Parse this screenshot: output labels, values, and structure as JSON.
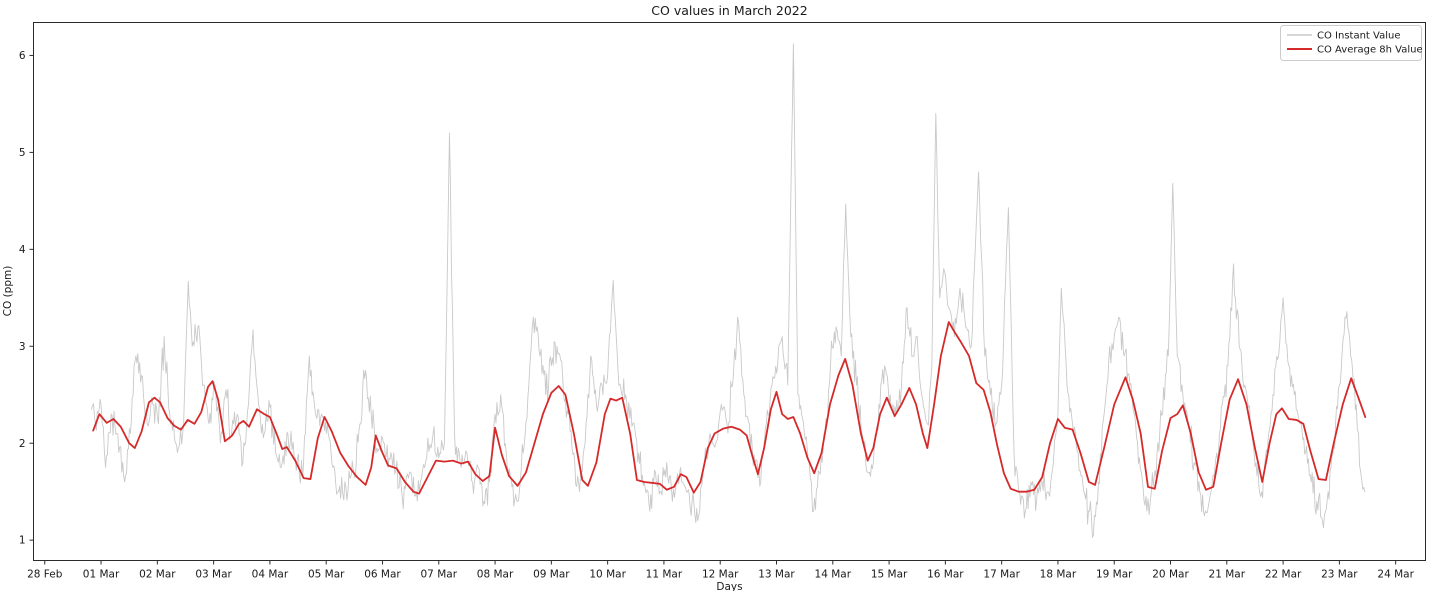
{
  "chart_data": {
    "type": "line",
    "title": "CO values in March 2022",
    "xlabel": "Days",
    "ylabel": "CO (ppm)",
    "x_unit": "days since 28 Feb 2022",
    "grid": false,
    "legend_position": "upper right",
    "xlim": [
      -0.2,
      24.53
    ],
    "ylim": [
      0.79,
      6.34
    ],
    "y_ticks": [
      1,
      2,
      3,
      4,
      5,
      6
    ],
    "x_tick_positions": [
      0,
      1,
      2,
      3,
      4,
      5,
      6,
      7,
      8,
      9,
      10,
      11,
      12,
      13,
      14,
      15,
      16,
      17,
      18,
      19,
      20,
      21,
      22,
      23,
      24
    ],
    "x_tick_labels": [
      "28 Feb",
      "01 Mar",
      "02 Mar",
      "03 Mar",
      "04 Mar",
      "05 Mar",
      "06 Mar",
      "07 Mar",
      "08 Mar",
      "09 Mar",
      "10 Mar",
      "11 Mar",
      "12 Mar",
      "13 Mar",
      "14 Mar",
      "15 Mar",
      "16 Mar",
      "17 Mar",
      "18 Mar",
      "19 Mar",
      "20 Mar",
      "21 Mar",
      "22 Mar",
      "23 Mar",
      "24 Mar"
    ],
    "series": [
      {
        "name": "CO Instant Value",
        "color": "#c9c9c9",
        "line_width": 0.9,
        "style": {
          "noise_step_days": 0.018,
          "noise_amp": [
            0.05,
            0.22
          ],
          "clamp": [
            1.03,
            6.12
          ],
          "seed": 7
        },
        "x": [
          0.83,
          0.9,
          1.0,
          1.08,
          1.18,
          1.28,
          1.42,
          1.52,
          1.62,
          1.72,
          1.82,
          1.92,
          2.02,
          2.12,
          2.22,
          2.32,
          2.45,
          2.55,
          2.62,
          2.72,
          2.82,
          2.92,
          3.02,
          3.12,
          3.22,
          3.32,
          3.42,
          3.52,
          3.62,
          3.7,
          3.8,
          3.9,
          4.0,
          4.1,
          4.2,
          4.32,
          4.45,
          4.58,
          4.7,
          4.8,
          4.92,
          5.02,
          5.12,
          5.22,
          5.35,
          5.5,
          5.6,
          5.7,
          5.8,
          5.9,
          6.0,
          6.1,
          6.2,
          6.35,
          6.5,
          6.6,
          6.75,
          6.9,
          7.0,
          7.1,
          7.19,
          7.28,
          7.38,
          7.5,
          7.6,
          7.7,
          7.8,
          7.9,
          8.0,
          8.1,
          8.2,
          8.3,
          8.4,
          8.5,
          8.6,
          8.68,
          8.8,
          8.9,
          9.0,
          9.1,
          9.2,
          9.3,
          9.4,
          9.5,
          9.6,
          9.7,
          9.8,
          9.9,
          10.0,
          10.1,
          10.2,
          10.32,
          10.45,
          10.55,
          10.65,
          10.75,
          10.85,
          10.95,
          11.05,
          11.15,
          11.28,
          11.4,
          11.5,
          11.6,
          11.72,
          11.82,
          11.92,
          12.02,
          12.12,
          12.22,
          12.31,
          12.42,
          12.52,
          12.62,
          12.72,
          12.82,
          12.92,
          13.02,
          13.1,
          13.2,
          13.3,
          13.38,
          13.48,
          13.58,
          13.66,
          13.76,
          13.86,
          13.96,
          14.06,
          14.15,
          14.23,
          14.32,
          14.42,
          14.52,
          14.62,
          14.72,
          14.82,
          14.92,
          15.02,
          15.12,
          15.22,
          15.32,
          15.42,
          15.5,
          15.58,
          15.68,
          15.76,
          15.83,
          15.9,
          15.97,
          16.06,
          16.16,
          16.26,
          16.36,
          16.46,
          16.59,
          16.7,
          16.8,
          16.9,
          17.0,
          17.12,
          17.22,
          17.32,
          17.42,
          17.52,
          17.62,
          17.72,
          17.82,
          17.92,
          18.0,
          18.06,
          18.16,
          18.26,
          18.36,
          18.46,
          18.56,
          18.63,
          18.72,
          18.82,
          18.92,
          19.0,
          19.08,
          19.18,
          19.28,
          19.38,
          19.48,
          19.58,
          19.66,
          19.76,
          19.86,
          19.96,
          20.04,
          20.12,
          20.22,
          20.32,
          20.42,
          20.52,
          20.62,
          20.72,
          20.82,
          20.92,
          21.02,
          21.12,
          21.22,
          21.32,
          21.42,
          21.52,
          21.62,
          21.72,
          21.82,
          21.92,
          22.0,
          22.1,
          22.2,
          22.3,
          22.4,
          22.5,
          22.6,
          22.7,
          22.8,
          22.9,
          23.0,
          23.1,
          23.2,
          23.3,
          23.38,
          23.45
        ],
        "y": [
          2.35,
          2.2,
          2.4,
          1.75,
          2.3,
          2.1,
          1.6,
          2.1,
          2.9,
          2.7,
          2.2,
          2.4,
          2.2,
          3.1,
          2.3,
          2.0,
          2.1,
          3.67,
          3.0,
          3.2,
          2.6,
          2.2,
          2.6,
          2.0,
          2.55,
          2.1,
          2.3,
          1.8,
          2.4,
          3.17,
          2.4,
          2.1,
          2.37,
          1.9,
          1.75,
          2.1,
          1.85,
          1.65,
          2.9,
          2.35,
          2.3,
          2.2,
          1.75,
          1.5,
          1.55,
          1.65,
          2.2,
          2.75,
          2.3,
          1.95,
          2.05,
          1.75,
          1.9,
          1.45,
          1.7,
          1.5,
          1.75,
          2.1,
          1.85,
          2.0,
          5.2,
          2.1,
          1.8,
          1.9,
          1.6,
          1.75,
          1.4,
          1.6,
          2.3,
          2.5,
          1.9,
          1.55,
          1.4,
          1.9,
          2.6,
          3.3,
          2.9,
          2.5,
          2.8,
          3.0,
          2.7,
          2.3,
          1.9,
          1.5,
          2.0,
          2.9,
          2.4,
          2.6,
          2.7,
          3.68,
          2.6,
          2.5,
          2.2,
          1.9,
          1.6,
          1.3,
          1.7,
          1.5,
          1.8,
          1.4,
          1.7,
          1.5,
          1.4,
          1.2,
          1.8,
          2.1,
          2.0,
          2.4,
          2.2,
          2.6,
          3.3,
          2.5,
          2.2,
          1.8,
          1.6,
          2.2,
          2.6,
          2.8,
          3.1,
          2.6,
          6.12,
          2.5,
          2.2,
          1.8,
          1.3,
          1.7,
          2.1,
          2.8,
          3.2,
          2.9,
          4.47,
          3.1,
          2.6,
          2.1,
          1.7,
          1.8,
          2.4,
          2.8,
          2.5,
          2.3,
          2.6,
          3.4,
          2.9,
          3.1,
          2.5,
          2.2,
          2.8,
          5.4,
          3.5,
          3.8,
          3.4,
          3.1,
          3.6,
          3.2,
          3.0,
          4.8,
          2.9,
          2.5,
          2.2,
          2.6,
          4.43,
          1.9,
          1.5,
          1.3,
          1.6,
          1.4,
          1.6,
          1.5,
          1.8,
          2.3,
          3.6,
          2.6,
          2.2,
          1.9,
          1.5,
          1.3,
          1.05,
          1.6,
          2.3,
          3.0,
          3.1,
          3.3,
          2.9,
          2.6,
          2.2,
          1.7,
          1.3,
          1.5,
          1.9,
          2.3,
          2.9,
          4.68,
          2.9,
          2.5,
          2.2,
          1.8,
          1.5,
          1.3,
          1.5,
          1.9,
          2.4,
          2.8,
          3.85,
          3.0,
          2.6,
          2.2,
          1.8,
          1.5,
          1.9,
          2.5,
          2.9,
          3.5,
          2.8,
          2.5,
          2.2,
          1.9,
          1.6,
          1.4,
          1.2,
          1.5,
          2.0,
          2.6,
          3.3,
          2.9,
          2.4,
          1.7,
          1.5
        ]
      },
      {
        "name": "CO Average 8h Value",
        "color": "#d62a2a",
        "line_width": 1.8,
        "x": [
          0.86,
          0.97,
          1.1,
          1.22,
          1.35,
          1.5,
          1.6,
          1.72,
          1.85,
          1.95,
          2.05,
          2.18,
          2.3,
          2.42,
          2.54,
          2.66,
          2.78,
          2.9,
          2.98,
          3.08,
          3.2,
          3.33,
          3.45,
          3.53,
          3.63,
          3.77,
          3.9,
          4.0,
          4.13,
          4.22,
          4.3,
          4.45,
          4.6,
          4.72,
          4.85,
          4.97,
          5.1,
          5.25,
          5.4,
          5.55,
          5.7,
          5.8,
          5.88,
          6.0,
          6.1,
          6.25,
          6.4,
          6.55,
          6.65,
          6.8,
          6.95,
          7.1,
          7.25,
          7.4,
          7.52,
          7.65,
          7.78,
          7.9,
          8.0,
          8.12,
          8.25,
          8.4,
          8.55,
          8.7,
          8.85,
          9.0,
          9.13,
          9.25,
          9.4,
          9.55,
          9.65,
          9.8,
          9.95,
          10.05,
          10.15,
          10.26,
          10.4,
          10.52,
          10.65,
          10.8,
          10.93,
          11.05,
          11.18,
          11.3,
          11.4,
          11.53,
          11.65,
          11.78,
          11.9,
          12.05,
          12.2,
          12.35,
          12.47,
          12.58,
          12.67,
          12.78,
          12.9,
          13.0,
          13.1,
          13.2,
          13.3,
          13.42,
          13.55,
          13.67,
          13.8,
          13.95,
          14.1,
          14.22,
          14.35,
          14.5,
          14.62,
          14.72,
          14.84,
          14.96,
          15.1,
          15.22,
          15.36,
          15.48,
          15.6,
          15.68,
          15.8,
          15.92,
          16.06,
          16.16,
          16.28,
          16.42,
          16.55,
          16.68,
          16.8,
          16.92,
          17.04,
          17.16,
          17.3,
          17.45,
          17.58,
          17.72,
          17.86,
          18.0,
          18.12,
          18.26,
          18.4,
          18.55,
          18.66,
          18.82,
          19.0,
          19.2,
          19.33,
          19.47,
          19.6,
          19.72,
          19.85,
          20.0,
          20.12,
          20.22,
          20.36,
          20.5,
          20.63,
          20.76,
          20.9,
          21.05,
          21.2,
          21.35,
          21.5,
          21.63,
          21.76,
          21.88,
          21.98,
          22.1,
          22.24,
          22.36,
          22.48,
          22.63,
          22.76,
          22.9,
          23.06,
          23.21,
          23.35,
          23.46
        ],
        "y": [
          2.13,
          2.3,
          2.21,
          2.25,
          2.17,
          2.0,
          1.95,
          2.12,
          2.42,
          2.47,
          2.42,
          2.26,
          2.18,
          2.14,
          2.24,
          2.2,
          2.32,
          2.58,
          2.64,
          2.45,
          2.02,
          2.08,
          2.2,
          2.23,
          2.17,
          2.35,
          2.3,
          2.27,
          2.08,
          1.94,
          1.96,
          1.82,
          1.64,
          1.63,
          2.05,
          2.27,
          2.12,
          1.9,
          1.76,
          1.65,
          1.57,
          1.75,
          2.08,
          1.9,
          1.77,
          1.74,
          1.6,
          1.5,
          1.48,
          1.65,
          1.82,
          1.81,
          1.82,
          1.79,
          1.81,
          1.68,
          1.61,
          1.66,
          2.16,
          1.88,
          1.66,
          1.56,
          1.7,
          2.0,
          2.3,
          2.52,
          2.59,
          2.5,
          2.1,
          1.62,
          1.56,
          1.8,
          2.3,
          2.46,
          2.44,
          2.47,
          2.1,
          1.62,
          1.6,
          1.59,
          1.58,
          1.52,
          1.55,
          1.68,
          1.65,
          1.49,
          1.6,
          1.95,
          2.1,
          2.15,
          2.17,
          2.14,
          2.08,
          1.85,
          1.68,
          1.95,
          2.35,
          2.53,
          2.3,
          2.25,
          2.27,
          2.1,
          1.85,
          1.69,
          1.9,
          2.4,
          2.7,
          2.87,
          2.6,
          2.1,
          1.82,
          1.95,
          2.3,
          2.47,
          2.28,
          2.4,
          2.57,
          2.4,
          2.1,
          1.95,
          2.4,
          2.9,
          3.25,
          3.15,
          3.04,
          2.9,
          2.62,
          2.55,
          2.32,
          1.98,
          1.69,
          1.53,
          1.5,
          1.5,
          1.52,
          1.65,
          2.0,
          2.25,
          2.16,
          2.14,
          1.9,
          1.6,
          1.57,
          1.95,
          2.4,
          2.68,
          2.45,
          2.1,
          1.55,
          1.53,
          1.92,
          2.26,
          2.3,
          2.39,
          2.1,
          1.7,
          1.52,
          1.55,
          2.0,
          2.45,
          2.66,
          2.4,
          1.95,
          1.6,
          2.0,
          2.3,
          2.36,
          2.25,
          2.24,
          2.2,
          1.93,
          1.63,
          1.62,
          2.0,
          2.4,
          2.67,
          2.45,
          2.27
        ]
      }
    ]
  },
  "legend": {
    "items": [
      {
        "label": "CO Instant Value"
      },
      {
        "label": "CO Average 8h Value"
      }
    ]
  }
}
